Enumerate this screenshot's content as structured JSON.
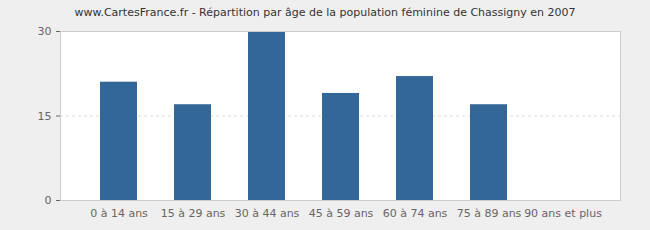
{
  "chart_data": {
    "type": "bar",
    "title": "www.CartesFrance.fr - Répartition par âge de la population féminine de Chassigny en 2007",
    "categories": [
      "0 à 14 ans",
      "15 à 29 ans",
      "30 à 44 ans",
      "45 à 59 ans",
      "60 à 74 ans",
      "75 à 89 ans",
      "90 ans et plus"
    ],
    "values": [
      21,
      17,
      30,
      19,
      22,
      17,
      0
    ],
    "color": "#336699",
    "ylim": [
      0,
      30
    ],
    "yticks": [
      0,
      15,
      30
    ],
    "grid": true
  }
}
